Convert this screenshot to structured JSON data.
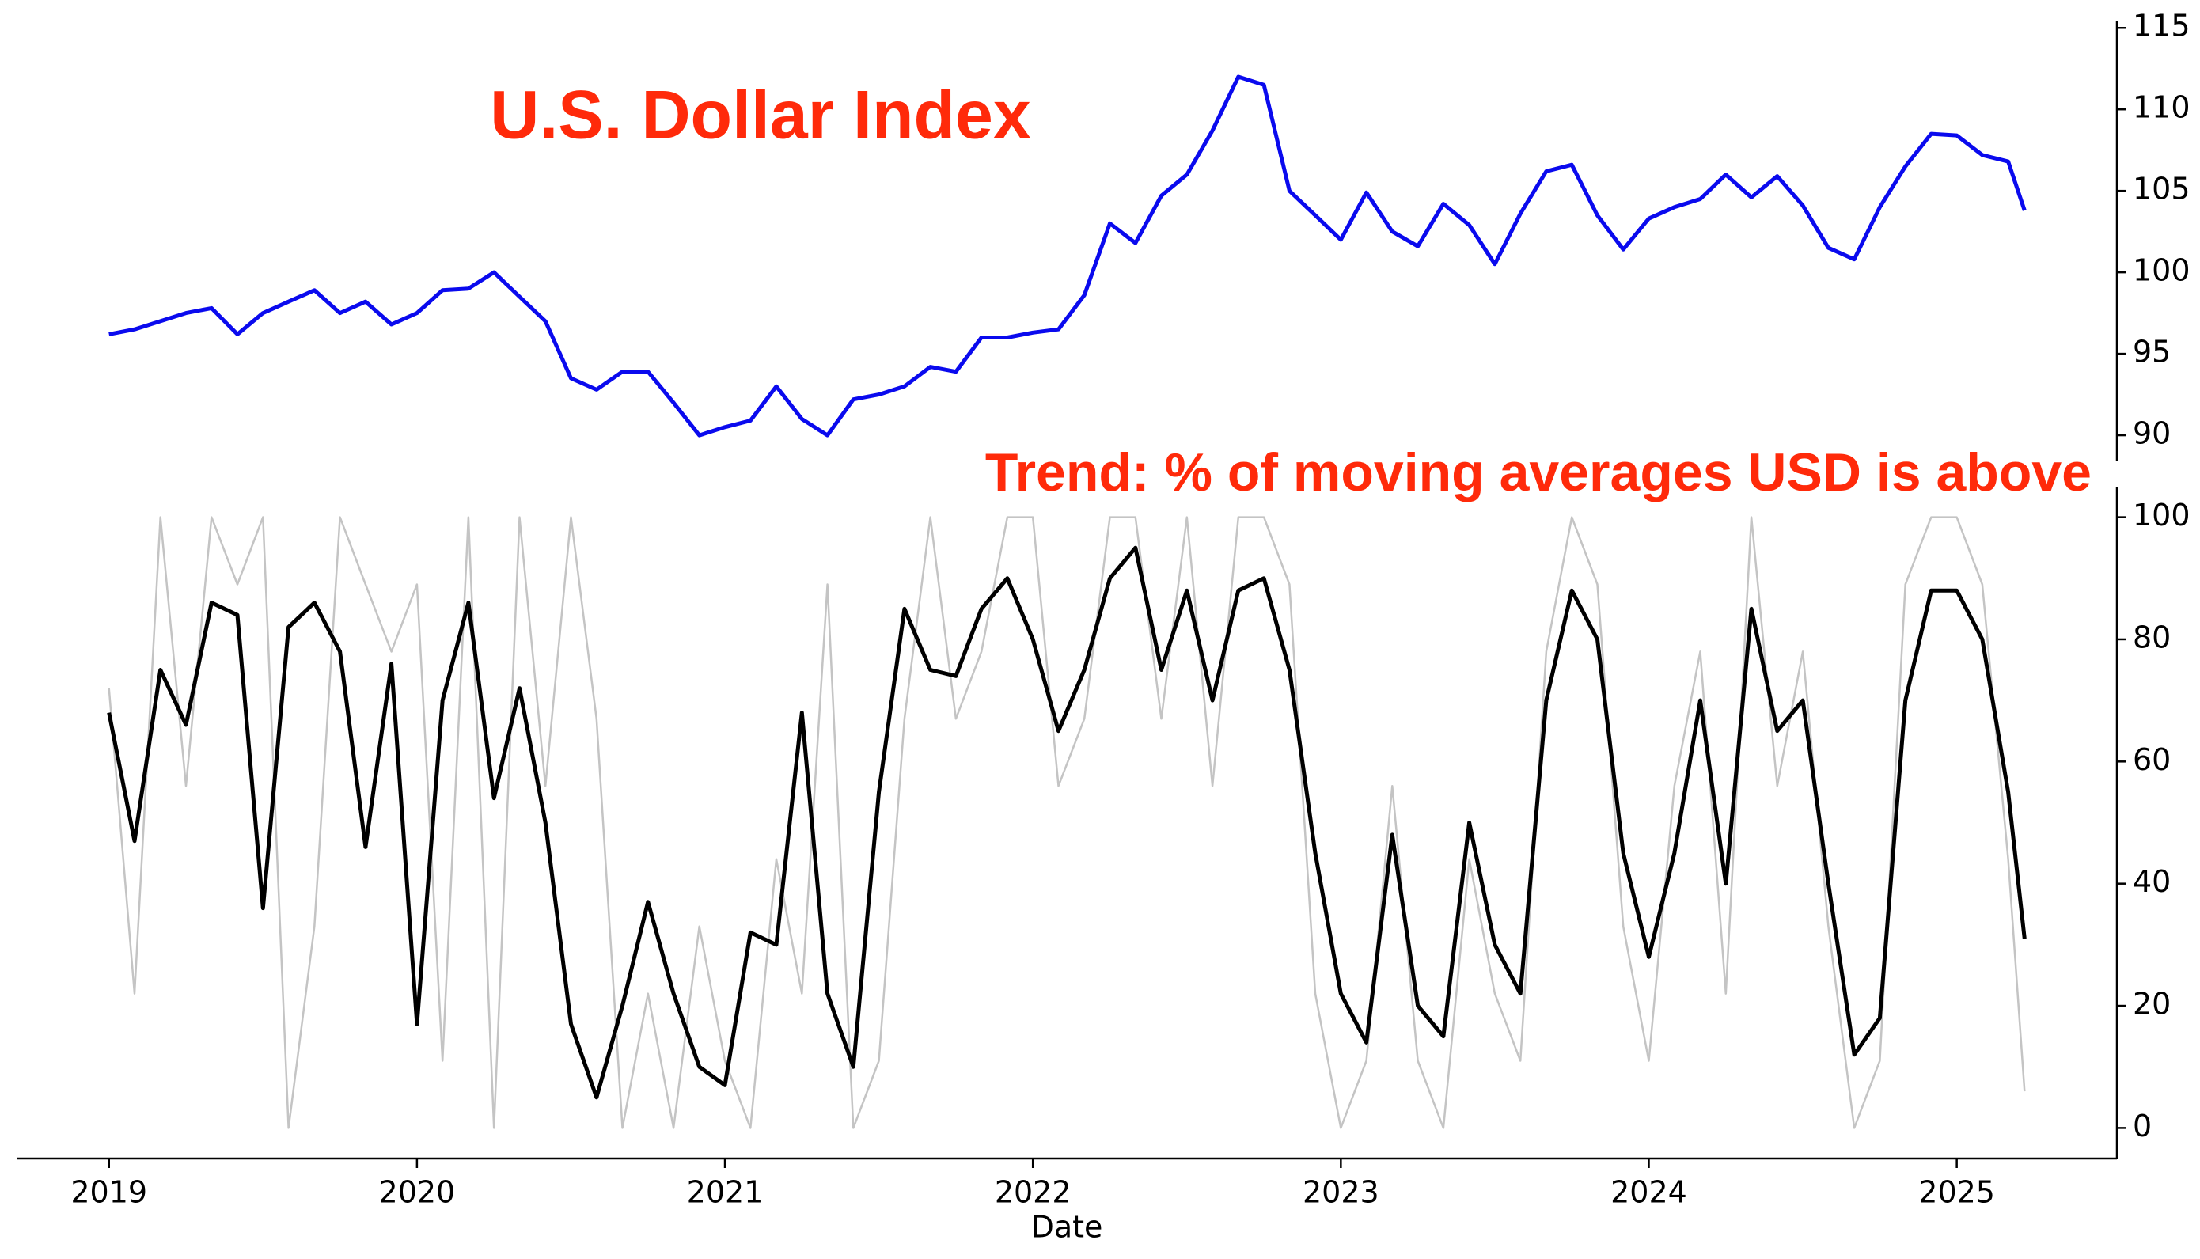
{
  "chart_data": [
    {
      "type": "line",
      "title": "U.S. Dollar Index",
      "x": [
        2019.0,
        2019.083,
        2019.167,
        2019.25,
        2019.333,
        2019.417,
        2019.5,
        2019.583,
        2019.667,
        2019.75,
        2019.833,
        2019.917,
        2020.0,
        2020.083,
        2020.167,
        2020.25,
        2020.333,
        2020.417,
        2020.5,
        2020.583,
        2020.667,
        2020.75,
        2020.833,
        2020.917,
        2021.0,
        2021.083,
        2021.167,
        2021.25,
        2021.333,
        2021.417,
        2021.5,
        2021.583,
        2021.667,
        2021.75,
        2021.833,
        2021.917,
        2022.0,
        2022.083,
        2022.167,
        2022.25,
        2022.333,
        2022.417,
        2022.5,
        2022.583,
        2022.667,
        2022.75,
        2022.833,
        2022.917,
        2023.0,
        2023.083,
        2023.167,
        2023.25,
        2023.333,
        2023.417,
        2023.5,
        2023.583,
        2023.667,
        2023.75,
        2023.833,
        2023.917,
        2024.0,
        2024.083,
        2024.167,
        2024.25,
        2024.333,
        2024.417,
        2024.5,
        2024.583,
        2024.667,
        2024.75,
        2024.833,
        2024.917,
        2025.0,
        2025.083,
        2025.167,
        2025.22
      ],
      "series": [
        {
          "color": "#0a0aee",
          "values": [
            96.2,
            96.5,
            97.0,
            97.5,
            97.8,
            96.2,
            97.5,
            98.2,
            98.9,
            97.5,
            98.2,
            96.8,
            97.5,
            98.9,
            99.0,
            100.0,
            98.5,
            97.0,
            93.5,
            92.8,
            93.9,
            93.9,
            92.0,
            90.0,
            90.5,
            90.9,
            93.0,
            91.0,
            90.0,
            92.2,
            92.5,
            93.0,
            94.2,
            93.9,
            96.0,
            96.0,
            96.3,
            96.5,
            98.6,
            103.0,
            101.8,
            104.7,
            106.0,
            108.7,
            112.0,
            111.5,
            105.0,
            103.5,
            102.0,
            104.9,
            102.5,
            101.6,
            104.2,
            102.9,
            100.5,
            103.6,
            106.2,
            106.6,
            103.5,
            101.4,
            103.3,
            104.0,
            104.5,
            106.0,
            104.6,
            105.9,
            104.1,
            101.5,
            100.8,
            104.0,
            106.5,
            108.5,
            108.4,
            107.2,
            106.8,
            103.8
          ]
        }
      ],
      "xlim": [
        2018.7,
        2025.52
      ],
      "ylim": [
        88.4,
        115.4
      ],
      "yticks": [
        90,
        95,
        100,
        105,
        110,
        115
      ]
    },
    {
      "type": "line",
      "title": "Trend: % of moving averages USD is above",
      "xlabel": "Date",
      "x": [
        2019.0,
        2019.083,
        2019.167,
        2019.25,
        2019.333,
        2019.417,
        2019.5,
        2019.583,
        2019.667,
        2019.75,
        2019.833,
        2019.917,
        2020.0,
        2020.083,
        2020.167,
        2020.25,
        2020.333,
        2020.417,
        2020.5,
        2020.583,
        2020.667,
        2020.75,
        2020.833,
        2020.917,
        2021.0,
        2021.083,
        2021.167,
        2021.25,
        2021.333,
        2021.417,
        2021.5,
        2021.583,
        2021.667,
        2021.75,
        2021.833,
        2021.917,
        2022.0,
        2022.083,
        2022.167,
        2022.25,
        2022.333,
        2022.417,
        2022.5,
        2022.583,
        2022.667,
        2022.75,
        2022.833,
        2022.917,
        2023.0,
        2023.083,
        2023.167,
        2023.25,
        2023.333,
        2023.417,
        2023.5,
        2023.583,
        2023.667,
        2023.75,
        2023.833,
        2023.917,
        2024.0,
        2024.083,
        2024.167,
        2024.25,
        2024.333,
        2024.417,
        2024.5,
        2024.583,
        2024.667,
        2024.75,
        2024.833,
        2024.917,
        2025.0,
        2025.083,
        2025.167,
        2025.22
      ],
      "series": [
        {
          "color": "#c4c4c4",
          "values": [
            72,
            22,
            100,
            56,
            100,
            89,
            100,
            0,
            33,
            100,
            89,
            78,
            89,
            11,
            100,
            0,
            100,
            56,
            100,
            67,
            0,
            22,
            0,
            33,
            11,
            0,
            44,
            22,
            89,
            0,
            11,
            67,
            100,
            67,
            78,
            100,
            100,
            56,
            67,
            100,
            100,
            67,
            100,
            56,
            100,
            100,
            89,
            22,
            0,
            11,
            56,
            11,
            0,
            44,
            22,
            11,
            78,
            100,
            89,
            33,
            11,
            56,
            78,
            22,
            100,
            56,
            78,
            33,
            0,
            11,
            89,
            100,
            100,
            89,
            44,
            6
          ]
        },
        {
          "color": "#000000",
          "values": [
            68,
            47,
            75,
            66,
            86,
            84,
            36,
            82,
            86,
            78,
            46,
            76,
            17,
            70,
            86,
            54,
            72,
            50,
            17,
            5,
            20,
            37,
            22,
            10,
            7,
            32,
            30,
            68,
            22,
            10,
            55,
            85,
            75,
            74,
            85,
            90,
            80,
            65,
            75,
            90,
            95,
            75,
            88,
            70,
            88,
            90,
            75,
            45,
            22,
            14,
            48,
            20,
            15,
            50,
            30,
            22,
            70,
            88,
            80,
            45,
            28,
            45,
            70,
            40,
            85,
            65,
            70,
            40,
            12,
            18,
            70,
            88,
            88,
            80,
            55,
            31
          ]
        }
      ],
      "xlim": [
        2018.7,
        2025.52
      ],
      "ylim": [
        -5,
        105
      ],
      "yticks": [
        0,
        20,
        40,
        60,
        80,
        100
      ],
      "xticks": [
        2019,
        2020,
        2021,
        2022,
        2023,
        2024,
        2025
      ]
    }
  ]
}
